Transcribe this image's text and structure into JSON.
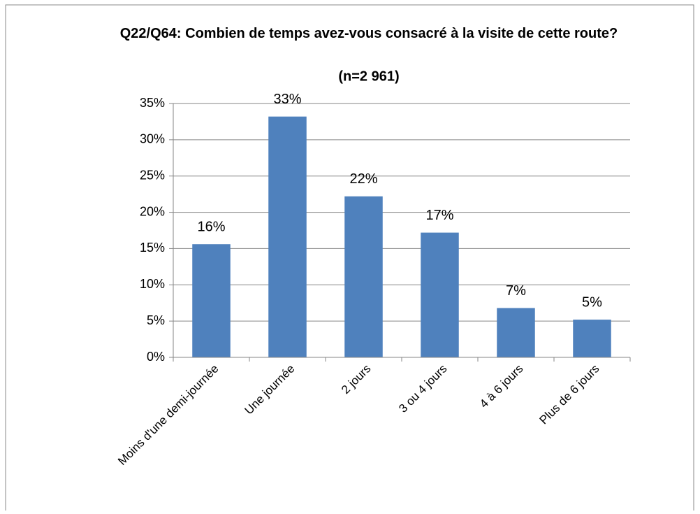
{
  "chart_data": {
    "type": "bar",
    "title": "Q22/Q64: Combien de temps avez-vous consacré à la visite de cette route?",
    "subtitle": "(n=2 961)",
    "categories": [
      "Moins d'une demi-journée",
      "Une journée",
      "2 jours",
      "3 ou 4 jours",
      "4 à 6 jours",
      "Plus de 6 jours"
    ],
    "values": [
      15.6,
      33.2,
      22.2,
      17.2,
      6.8,
      5.2
    ],
    "value_labels": [
      "16%",
      "33%",
      "22%",
      "17%",
      "7%",
      "5%"
    ],
    "color": "#4f81bd",
    "ylim": [
      0,
      35
    ],
    "yticks": [
      {
        "value": 0,
        "label": "0%"
      },
      {
        "value": 5,
        "label": "5%"
      },
      {
        "value": 10,
        "label": "10%"
      },
      {
        "value": 15,
        "label": "15%"
      },
      {
        "value": 20,
        "label": "20%"
      },
      {
        "value": 25,
        "label": "25%"
      },
      {
        "value": 30,
        "label": "30%"
      },
      {
        "value": 35,
        "label": "35%"
      }
    ],
    "grid": true
  }
}
